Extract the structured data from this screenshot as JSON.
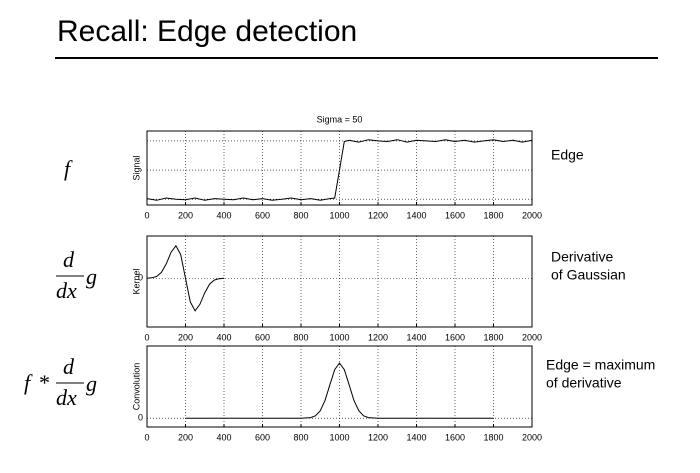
{
  "slide": {
    "title": "Recall: Edge detection"
  },
  "chart_data": [
    {
      "type": "line",
      "title": "Sigma = 50",
      "ylabel": "Signal",
      "color": "#000000",
      "x": [
        0,
        50,
        100,
        150,
        200,
        250,
        300,
        350,
        400,
        450,
        500,
        550,
        600,
        650,
        700,
        750,
        800,
        850,
        900,
        950,
        975,
        1000,
        1025,
        1050,
        1100,
        1150,
        1200,
        1250,
        1300,
        1350,
        1400,
        1450,
        1500,
        1550,
        1600,
        1650,
        1700,
        1750,
        1800,
        1850,
        1900,
        1950,
        2000
      ],
      "values": [
        0.01,
        -0.02,
        0.02,
        0,
        -0.01,
        0.02,
        -0.02,
        0.01,
        0,
        -0.01,
        0.02,
        -0.01,
        0.01,
        -0.02,
        0,
        0.02,
        -0.01,
        0.01,
        -0.02,
        0.01,
        0.02,
        0.5,
        0.99,
        1.01,
        0.98,
        1.02,
        1,
        0.99,
        1.02,
        0.98,
        1.01,
        1,
        0.99,
        1.02,
        0.99,
        1.01,
        0.98,
        1,
        1.02,
        0.99,
        1.01,
        0.98,
        1.01
      ],
      "xlim": [
        0,
        2000
      ],
      "xticks": [
        0,
        200,
        400,
        600,
        800,
        1000,
        1200,
        1400,
        1600,
        1800,
        2000
      ],
      "ylim": [
        -0.1,
        1.17
      ],
      "ygrid_lines": [
        0,
        0.5,
        1
      ],
      "grid": true
    },
    {
      "type": "line",
      "ylabel": "Kernel",
      "color": "#000000",
      "x": [
        0,
        25,
        50,
        75,
        100,
        125,
        150,
        175,
        200,
        225,
        250,
        275,
        300,
        325,
        350,
        375,
        400
      ],
      "values": [
        0.002,
        0.013,
        0.055,
        0.181,
        0.446,
        0.803,
        1,
        0.728,
        0,
        -0.728,
        -1,
        -0.803,
        -0.446,
        -0.181,
        -0.055,
        -0.013,
        -0.002
      ],
      "xlim": [
        0,
        2000
      ],
      "xticks": [
        0,
        200,
        400,
        600,
        800,
        1000,
        1200,
        1400,
        1600,
        1800,
        2000
      ],
      "ylim": [
        -1.5,
        1.3
      ],
      "yticks": [
        0
      ],
      "grid": true
    },
    {
      "type": "line",
      "ylabel": "Convolution",
      "color": "#000000",
      "x": [
        200,
        300,
        400,
        500,
        600,
        700,
        800,
        850,
        875,
        900,
        925,
        950,
        975,
        1000,
        1025,
        1050,
        1075,
        1100,
        1125,
        1150,
        1200,
        1300,
        1400,
        1500,
        1600,
        1700,
        1800
      ],
      "values": [
        0,
        0,
        0,
        0,
        0,
        0,
        0,
        0.011,
        0.044,
        0.135,
        0.325,
        0.607,
        0.882,
        1,
        0.882,
        0.607,
        0.325,
        0.135,
        0.044,
        0.011,
        0,
        0,
        0,
        0,
        0,
        0,
        0
      ],
      "xlim": [
        0,
        2000
      ],
      "xticks": [
        0,
        200,
        400,
        600,
        800,
        1000,
        1200,
        1400,
        1600,
        1800,
        2000
      ],
      "ylim": [
        -0.16,
        1.31
      ],
      "yticks": [
        0
      ],
      "grid": true
    }
  ],
  "left_labels": {
    "f": "f",
    "d": "d",
    "dx": "dx",
    "g": "g",
    "star": "*"
  },
  "notes": [
    [
      "Edge"
    ],
    [
      "Derivative",
      "of Gaussian"
    ],
    [
      "Edge = maximum",
      "of derivative"
    ]
  ]
}
